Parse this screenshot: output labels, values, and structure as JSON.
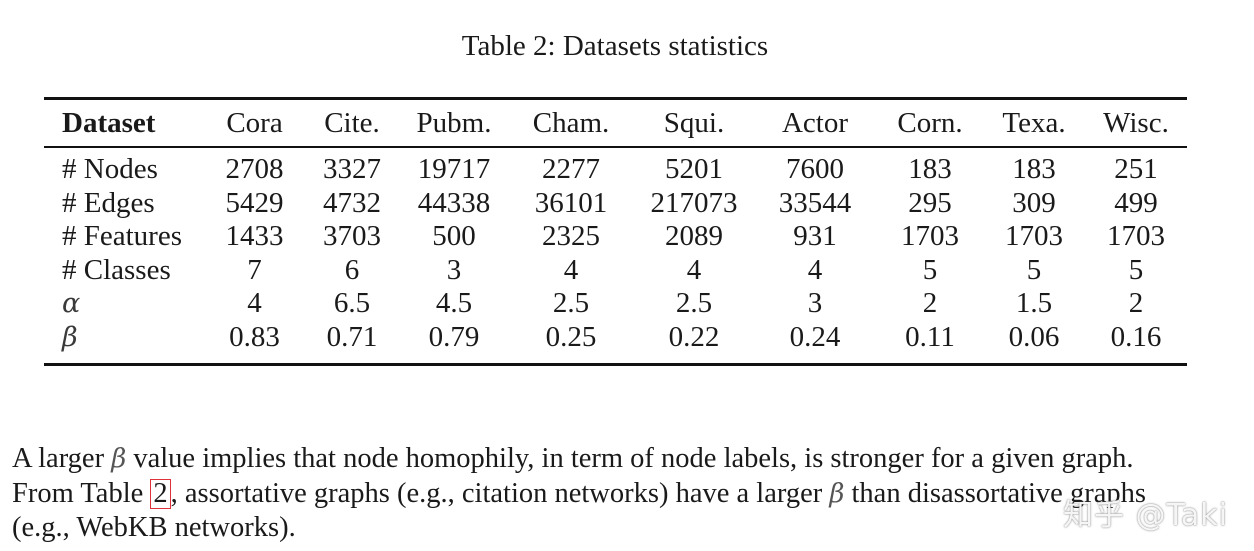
{
  "caption": "Table 2: Datasets statistics",
  "table": {
    "header": [
      "Dataset",
      "Cora",
      "Cite.",
      "Pubm.",
      "Cham.",
      "Squi.",
      "Actor",
      "Corn.",
      "Texa.",
      "Wisc."
    ],
    "rows": [
      {
        "label": "# Nodes",
        "values": [
          "2708",
          "3327",
          "19717",
          "2277",
          "5201",
          "7600",
          "183",
          "183",
          "251"
        ]
      },
      {
        "label": "# Edges",
        "values": [
          "5429",
          "4732",
          "44338",
          "36101",
          "217073",
          "33544",
          "295",
          "309",
          "499"
        ]
      },
      {
        "label": "# Features",
        "values": [
          "1433",
          "3703",
          "500",
          "2325",
          "2089",
          "931",
          "1703",
          "1703",
          "1703"
        ]
      },
      {
        "label": "# Classes",
        "values": [
          "7",
          "6",
          "3",
          "4",
          "4",
          "4",
          "5",
          "5",
          "5"
        ]
      },
      {
        "label": "α",
        "values": [
          "4",
          "6.5",
          "4.5",
          "2.5",
          "2.5",
          "3",
          "2",
          "1.5",
          "2"
        ]
      },
      {
        "label": "β",
        "values": [
          "0.83",
          "0.71",
          "0.79",
          "0.25",
          "0.22",
          "0.24",
          "0.11",
          "0.06",
          "0.16"
        ]
      }
    ]
  },
  "paragraph": {
    "line1_a": "A larger ",
    "beta": "β",
    "line1_b": " value implies that node homophily, in term of node labels, is stronger for a given graph.",
    "line2_a": "From Table ",
    "ref": "2",
    "line2_b": ", assortative graphs (e.g., citation networks) have a larger ",
    "line2_c": " than disassortative graphs",
    "line3": "(e.g., WebKB networks)."
  },
  "watermark": "知乎 @Taki"
}
